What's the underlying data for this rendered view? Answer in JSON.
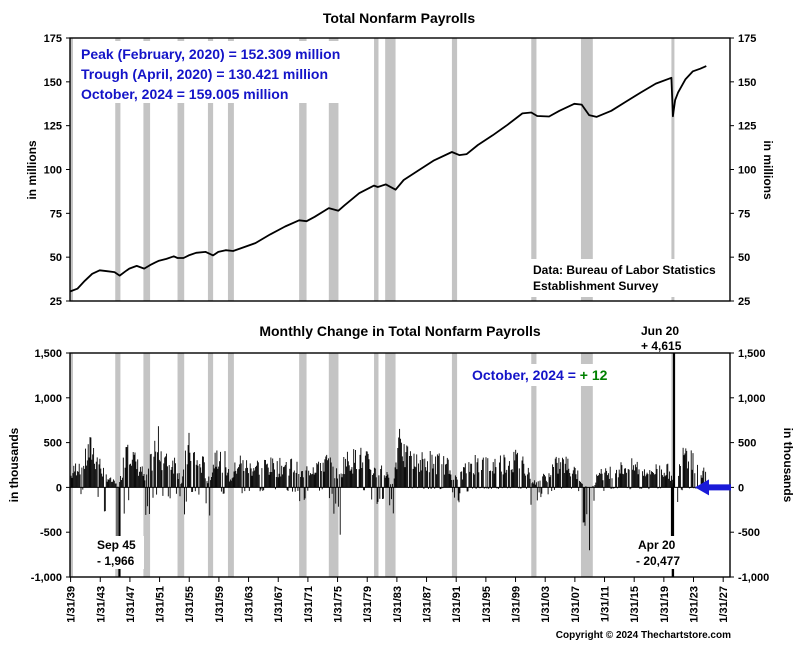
{
  "colors": {
    "recession": "#c4c4c4",
    "line": "#000000",
    "note_blue": "#1414c8",
    "note_green": "#008000",
    "arrow": "#1a1ad8"
  },
  "chart_data": [
    {
      "type": "line",
      "title": "Total Nonfarm Payrolls",
      "ylabel": "in millions",
      "ylim": [
        25,
        175
      ],
      "yticks": [
        "25",
        "50",
        "75",
        "100",
        "125",
        "150",
        "175"
      ],
      "xlim": [
        1939.0,
        2028.0
      ],
      "notes": [
        "Peak (February, 2020) = 152.309 million",
        "Trough (April, 2020) = 130.421 million",
        "October, 2024 = 159.005 million"
      ],
      "source": [
        "Data:  Bureau of Labor Statistics",
        "Establishment Survey"
      ],
      "series": [
        {
          "x": [
            1939.0,
            1940.0,
            1941.0,
            1942.0,
            1943.0,
            1944.0,
            1945.0,
            1945.7,
            1946.5,
            1947.0,
            1948.0,
            1949.0,
            1949.8,
            1950.5,
            1951.0,
            1952.0,
            1953.0,
            1953.5,
            1954.3,
            1955.0,
            1956.0,
            1957.3,
            1958.3,
            1959.0,
            1960.0,
            1961.0,
            1962.0,
            1964.0,
            1966.0,
            1968.0,
            1969.9,
            1970.9,
            1972.0,
            1973.9,
            1975.2,
            1976.0,
            1978.0,
            1980.0,
            1980.5,
            1981.6,
            1982.9,
            1984.0,
            1986.0,
            1988.0,
            1990.5,
            1991.5,
            1992.5,
            1994.0,
            1996.0,
            1998.0,
            2000.0,
            2001.2,
            2002.0,
            2003.6,
            2005.0,
            2007.0,
            2008.0,
            2009.0,
            2010.0,
            2012.0,
            2014.0,
            2016.0,
            2018.0,
            2020.1,
            2020.3,
            2020.6,
            2021.0,
            2022.0,
            2023.0,
            2024.0,
            2024.8
          ],
          "y": [
            30.4,
            32.0,
            36.5,
            40.5,
            42.5,
            42.0,
            41.5,
            39.5,
            42.0,
            43.5,
            45.0,
            43.5,
            45.5,
            47.0,
            48.0,
            49.0,
            50.5,
            49.5,
            49.5,
            51.0,
            52.5,
            53.0,
            51.0,
            53.0,
            54.0,
            53.5,
            55.0,
            58.0,
            63.0,
            67.5,
            71.0,
            70.5,
            73.0,
            78.0,
            76.5,
            79.5,
            86.5,
            90.8,
            90.0,
            91.5,
            88.5,
            94.0,
            99.5,
            105.0,
            110.0,
            108.2,
            108.8,
            114.0,
            119.5,
            125.5,
            132.0,
            132.5,
            130.5,
            130.2,
            133.5,
            137.5,
            137.0,
            131.0,
            130.0,
            133.5,
            138.8,
            144.0,
            149.0,
            152.3,
            130.4,
            139.5,
            144.0,
            151.5,
            156.0,
            157.5,
            159.0
          ]
        }
      ],
      "recessions": [
        [
          1937.4,
          1938.5
        ],
        [
          1945.1,
          1945.8
        ],
        [
          1948.9,
          1949.8
        ],
        [
          1953.5,
          1954.4
        ],
        [
          1957.6,
          1958.3
        ],
        [
          1960.3,
          1961.1
        ],
        [
          1969.9,
          1970.9
        ],
        [
          1973.9,
          1975.2
        ],
        [
          1980.0,
          1980.6
        ],
        [
          1981.5,
          1982.9
        ],
        [
          1990.5,
          1991.2
        ],
        [
          2001.2,
          2001.9
        ],
        [
          2007.9,
          2009.5
        ],
        [
          2020.1,
          2020.3
        ]
      ]
    },
    {
      "type": "bar",
      "title": "Monthly Change in Total Nonfarm Payrolls",
      "ylabel": "in thousands",
      "ylim": [
        -1000,
        1500
      ],
      "yticks": [
        "-1,000",
        "-500",
        "0",
        "500",
        "1,000",
        "1,500"
      ],
      "xlim": [
        1939.0,
        2028.0
      ],
      "xticks": [
        "1/31/39",
        "1/31/43",
        "1/31/47",
        "1/31/51",
        "1/31/55",
        "1/31/59",
        "1/31/63",
        "1/31/67",
        "1/31/71",
        "1/31/75",
        "1/31/79",
        "1/31/83",
        "1/31/87",
        "1/31/91",
        "1/31/95",
        "1/31/99",
        "1/31/03",
        "1/31/07",
        "1/31/11",
        "1/31/15",
        "1/31/19",
        "1/31/23",
        "1/31/27"
      ],
      "note_label": "October, 2024 = ",
      "note_value": "+ 12",
      "annotations": {
        "sep45": [
          "Sep 45",
          "- 1,966"
        ],
        "jun20": [
          "Jun 20",
          "+ 4,615"
        ],
        "apr20": [
          "Apr 20",
          "- 20,477"
        ]
      },
      "envelope": {
        "x": [
          1939.0,
          1939.6,
          1940.2,
          1940.8,
          1941.4,
          1942.0,
          1942.6,
          1943.2,
          1943.8,
          1944.4,
          1945.0,
          1945.6,
          1946.2,
          1946.8,
          1947.4,
          1948.0,
          1948.6,
          1949.2,
          1949.8,
          1950.4,
          1951.0,
          1951.6,
          1952.2,
          1952.8,
          1953.4,
          1954.0,
          1954.6,
          1955.2,
          1955.8,
          1956.4,
          1957.0,
          1957.6,
          1958.2,
          1958.8,
          1959.4,
          1960.0,
          1960.6,
          1961.2,
          1961.8,
          1962.4,
          1963.0,
          1965.0,
          1967.0,
          1969.0,
          1970.4,
          1971.0,
          1972.0,
          1973.0,
          1974.0,
          1974.8,
          1975.4,
          1976.0,
          1977.0,
          1978.0,
          1979.0,
          1980.2,
          1980.8,
          1981.4,
          1982.0,
          1982.6,
          1983.2,
          1983.6,
          1984.0,
          1985.0,
          1986.0,
          1987.0,
          1988.0,
          1989.0,
          1990.0,
          1990.8,
          1991.4,
          1992.0,
          1993.0,
          1994.0,
          1995.0,
          1996.0,
          1997.0,
          1998.0,
          1999.0,
          2000.0,
          2000.8,
          2001.4,
          2002.0,
          2002.6,
          2003.4,
          2004.0,
          2005.0,
          2006.0,
          2007.0,
          2007.6,
          2008.2,
          2008.8,
          2009.2,
          2009.8,
          2010.4,
          2011.0,
          2012.0,
          2013.0,
          2014.0,
          2015.0,
          2016.0,
          2017.0,
          2018.0,
          2019.0,
          2019.8,
          2020.5,
          2021.0,
          2021.5,
          2022.0,
          2022.5,
          2023.0,
          2023.5,
          2024.0,
          2024.8
        ],
        "hi": [
          150,
          280,
          400,
          320,
          560,
          620,
          450,
          320,
          200,
          120,
          80,
          0,
          380,
          880,
          500,
          350,
          300,
          80,
          360,
          600,
          700,
          450,
          380,
          450,
          350,
          50,
          450,
          680,
          480,
          380,
          360,
          80,
          300,
          620,
          480,
          420,
          100,
          280,
          420,
          360,
          320,
          360,
          320,
          380,
          200,
          280,
          350,
          420,
          380,
          250,
          150,
          420,
          430,
          480,
          420,
          250,
          300,
          260,
          120,
          60,
          650,
          1100,
          500,
          430,
          380,
          440,
          420,
          390,
          330,
          160,
          100,
          260,
          360,
          440,
          360,
          360,
          400,
          420,
          440,
          420,
          280,
          100,
          60,
          160,
          160,
          300,
          380,
          360,
          300,
          180,
          50,
          0,
          0,
          60,
          300,
          200,
          280,
          290,
          320,
          330,
          320,
          260,
          280,
          290,
          260,
          0,
          0,
          1050,
          650,
          560,
          450,
          360,
          300,
          200
        ],
        "lo": [
          -150,
          -200,
          -100,
          -50,
          -300,
          -350,
          -200,
          -200,
          -300,
          -450,
          -600,
          -1966,
          -800,
          -400,
          -200,
          -100,
          -200,
          -400,
          -300,
          -100,
          -100,
          -150,
          -250,
          -100,
          -200,
          -350,
          -300,
          -80,
          -50,
          -100,
          -150,
          -450,
          -400,
          -100,
          -50,
          -100,
          -300,
          -200,
          -50,
          -100,
          -50,
          -50,
          -60,
          -50,
          -200,
          -100,
          -50,
          -30,
          -150,
          -350,
          -650,
          -50,
          -30,
          -20,
          -50,
          -300,
          -250,
          -200,
          -500,
          -350,
          -50,
          -30,
          -20,
          -20,
          -30,
          -20,
          -20,
          -20,
          -50,
          -200,
          -250,
          -100,
          -20,
          -20,
          -20,
          -20,
          -20,
          -20,
          -20,
          -20,
          -50,
          -300,
          -200,
          -150,
          -100,
          -50,
          -20,
          -20,
          -20,
          -100,
          -400,
          -750,
          -800,
          -400,
          -150,
          -50,
          -20,
          -20,
          -20,
          -20,
          -20,
          -20,
          -20,
          -20,
          -20,
          -20,
          -250,
          -50,
          -20,
          -20,
          -20,
          -20,
          -20,
          -10
        ]
      },
      "spikes": [
        {
          "x": 1945.67,
          "y": -1966
        },
        {
          "x": 2020.3,
          "y": -20477
        },
        {
          "x": 2020.45,
          "y": 4615
        },
        {
          "x": 2020.18,
          "y": -550
        },
        {
          "x": 2024.75,
          "y": 12
        }
      ],
      "recessions": [
        [
          1937.4,
          1938.5
        ],
        [
          1945.1,
          1945.8
        ],
        [
          1948.9,
          1949.8
        ],
        [
          1953.5,
          1954.4
        ],
        [
          1957.6,
          1958.3
        ],
        [
          1960.3,
          1961.1
        ],
        [
          1969.9,
          1970.9
        ],
        [
          1973.9,
          1975.2
        ],
        [
          1980.0,
          1980.6
        ],
        [
          1981.5,
          1982.9
        ],
        [
          1990.5,
          1991.2
        ],
        [
          2001.2,
          2001.9
        ],
        [
          2007.9,
          2009.5
        ],
        [
          2020.1,
          2020.3
        ]
      ]
    }
  ],
  "copyright": "Copyright © 2024 Thechartstore.com"
}
